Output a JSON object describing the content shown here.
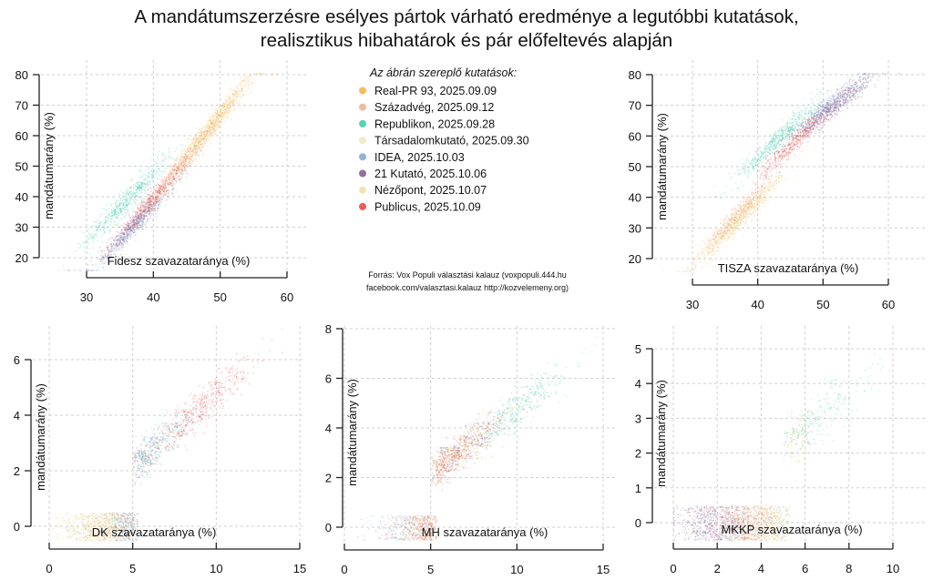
{
  "title": {
    "line1": "A mandátumszerzésre esélyes pártok várható eredménye a legutóbbi kutatások,",
    "line2": "realisztikus hibahatárok és pár előfeltevés alapján"
  },
  "legend": {
    "title": "Az ábrán szereplő kutatások:",
    "items": [
      {
        "label": "Real-PR 93, 2025.09.09",
        "color": "#F5B041"
      },
      {
        "label": "Századvég, 2025.09.12",
        "color": "#EDB08E"
      },
      {
        "label": "Republikon, 2025.09.28",
        "color": "#3CC9A6"
      },
      {
        "label": "Társadalomkutató, 2025.09.30",
        "color": "#EFE6BC"
      },
      {
        "label": "IDEA, 2025.10.03",
        "color": "#7FA6D4"
      },
      {
        "label": "21 Kutató, 2025.10.06",
        "color": "#7B5B8E"
      },
      {
        "label": "Nézőpont, 2025.10.07",
        "color": "#EEDFA2"
      },
      {
        "label": "Publicus, 2025.10.09",
        "color": "#E8403E"
      }
    ]
  },
  "source": {
    "line1": "Forrás: Vox Populi választási kalauz (voxpopuli.444.hu",
    "line2": "facebook.com/valasztasi.kalauz http://kozvelemeny.org)"
  },
  "chart_data": [
    {
      "id": "fidesz",
      "type": "scatter",
      "title": "",
      "xlabel": "Fidesz szavazataránya (%)",
      "ylabel": "mandátumarány (%)",
      "xlim": [
        30,
        60
      ],
      "ylim": [
        20,
        80
      ],
      "xticks": [
        30,
        40,
        50,
        60
      ],
      "yticks": [
        20,
        30,
        40,
        50,
        60,
        70,
        80
      ],
      "grid": true,
      "series": [
        {
          "name": "Real-PR 93, 2025.09.09",
          "x_mean": 48.5,
          "x_sd": 3.3,
          "slope": 2.6,
          "intercept": -63,
          "y_sd": 3.2,
          "weight": 1.6
        },
        {
          "name": "Századvég, 2025.09.12",
          "x_mean": 45,
          "x_sd": 3.0,
          "slope": 2.6,
          "intercept": -64,
          "y_sd": 3.0,
          "weight": 0.6
        },
        {
          "name": "Republikon, 2025.09.28",
          "x_mean": 36,
          "x_sd": 3.2,
          "slope": 2.2,
          "intercept": -40,
          "y_sd": 3.5,
          "weight": 1.2
        },
        {
          "name": "Társadalomkutató, 2025.09.30",
          "x_mean": 44,
          "x_sd": 3.2,
          "slope": 2.6,
          "intercept": -66,
          "y_sd": 3.0,
          "weight": 0.4
        },
        {
          "name": "IDEA, 2025.10.03",
          "x_mean": 37,
          "x_sd": 3.0,
          "slope": 2.3,
          "intercept": -55,
          "y_sd": 2.8,
          "weight": 0.7
        },
        {
          "name": "21 Kutató, 2025.10.06",
          "x_mean": 37,
          "x_sd": 3.2,
          "slope": 2.3,
          "intercept": -54,
          "y_sd": 2.8,
          "weight": 1.0
        },
        {
          "name": "Nézőpont, 2025.10.07",
          "x_mean": 47,
          "x_sd": 3.2,
          "slope": 2.6,
          "intercept": -63,
          "y_sd": 3.0,
          "weight": 0.4
        },
        {
          "name": "Publicus, 2025.10.09",
          "x_mean": 40,
          "x_sd": 2.8,
          "slope": 2.4,
          "intercept": -56,
          "y_sd": 2.8,
          "weight": 0.8
        }
      ]
    },
    {
      "id": "tisza",
      "type": "scatter",
      "title": "",
      "xlabel": "TISZA szavazataránya (%)",
      "ylabel": "mandátumarány (%)",
      "xlim": [
        30,
        60
      ],
      "ylim": [
        20,
        80
      ],
      "xticks": [
        30,
        40,
        50,
        60
      ],
      "yticks": [
        20,
        30,
        40,
        50,
        60,
        70,
        80
      ],
      "grid": true,
      "series": [
        {
          "name": "Real-PR 93, 2025.09.09",
          "x_mean": 37,
          "x_sd": 3.2,
          "slope": 2.2,
          "intercept": -48,
          "y_sd": 3.0,
          "weight": 1.0
        },
        {
          "name": "Századvég, 2025.09.12",
          "x_mean": 37,
          "x_sd": 3.0,
          "slope": 2.2,
          "intercept": -46,
          "y_sd": 3.0,
          "weight": 0.8
        },
        {
          "name": "Republikon, 2025.09.28",
          "x_mean": 43,
          "x_sd": 3.0,
          "slope": 2.0,
          "intercept": -27,
          "y_sd": 3.3,
          "weight": 1.1
        },
        {
          "name": "Társadalomkutató, 2025.09.30",
          "x_mean": 36,
          "x_sd": 3.0,
          "slope": 2.2,
          "intercept": -48,
          "y_sd": 3.0,
          "weight": 0.5
        },
        {
          "name": "IDEA, 2025.10.03",
          "x_mean": 50,
          "x_sd": 3.0,
          "slope": 1.8,
          "intercept": -21,
          "y_sd": 2.8,
          "weight": 0.8
        },
        {
          "name": "21 Kutató, 2025.10.06",
          "x_mean": 52,
          "x_sd": 3.0,
          "slope": 1.7,
          "intercept": -18,
          "y_sd": 3.0,
          "weight": 1.2
        },
        {
          "name": "Nézőpont, 2025.10.07",
          "x_mean": 38,
          "x_sd": 3.0,
          "slope": 2.2,
          "intercept": -50,
          "y_sd": 3.0,
          "weight": 0.5
        },
        {
          "name": "Publicus, 2025.10.09",
          "x_mean": 45.5,
          "x_sd": 2.6,
          "slope": 2.0,
          "intercept": -33,
          "y_sd": 2.8,
          "weight": 0.8
        }
      ]
    },
    {
      "id": "dk",
      "type": "scatter",
      "title": "",
      "xlabel": "DK szavazataránya (%)",
      "ylabel": "mandátumarány (%)",
      "xlim": [
        0,
        15
      ],
      "ylim": [
        0,
        6
      ],
      "xticks": [
        0,
        5,
        10,
        15
      ],
      "yticks": [
        0,
        2,
        4,
        6
      ],
      "grid": true,
      "threshold": 5,
      "series": [
        {
          "name": "Real-PR 93, 2025.09.09",
          "x_mean": 3.2,
          "x_sd": 1.2,
          "weight": 0.6
        },
        {
          "name": "Századvég, 2025.09.12",
          "x_mean": 4.6,
          "x_sd": 1.1,
          "weight": 0.6
        },
        {
          "name": "Republikon, 2025.09.28",
          "x_mean": 5.8,
          "x_sd": 1.3,
          "weight": 0.7
        },
        {
          "name": "Társadalomkutató, 2025.09.30",
          "x_mean": 2.8,
          "x_sd": 1.2,
          "weight": 0.8
        },
        {
          "name": "IDEA, 2025.10.03",
          "x_mean": 5.5,
          "x_sd": 1.3,
          "weight": 0.7
        },
        {
          "name": "21 Kutató, 2025.10.06",
          "x_mean": 4.8,
          "x_sd": 1.3,
          "weight": 0.5
        },
        {
          "name": "Nézőpont, 2025.10.07",
          "x_mean": 2.5,
          "x_sd": 1.1,
          "weight": 0.8
        },
        {
          "name": "Publicus, 2025.10.09",
          "x_mean": 9.0,
          "x_sd": 1.5,
          "weight": 1.1
        }
      ]
    },
    {
      "id": "mh",
      "type": "scatter",
      "title": "",
      "xlabel": "MH szavazataránya (%)",
      "ylabel": "mandátumarány (%)",
      "xlim": [
        0,
        15
      ],
      "ylim": [
        0,
        8
      ],
      "xticks": [
        0,
        5,
        10,
        15
      ],
      "yticks": [
        0,
        2,
        4,
        6,
        8
      ],
      "grid": true,
      "threshold": 5,
      "series": [
        {
          "name": "Real-PR 93, 2025.09.09",
          "x_mean": 6.2,
          "x_sd": 1.4,
          "weight": 0.9
        },
        {
          "name": "Századvég, 2025.09.12",
          "x_mean": 6.5,
          "x_sd": 1.4,
          "weight": 0.8
        },
        {
          "name": "Republikon, 2025.09.28",
          "x_mean": 10.0,
          "x_sd": 1.5,
          "weight": 0.9
        },
        {
          "name": "Társadalomkutató, 2025.09.30",
          "x_mean": 5.0,
          "x_sd": 1.3,
          "weight": 0.4
        },
        {
          "name": "IDEA, 2025.10.03",
          "x_mean": 3.8,
          "x_sd": 1.2,
          "weight": 0.6
        },
        {
          "name": "21 Kutató, 2025.10.06",
          "x_mean": 6.8,
          "x_sd": 1.4,
          "weight": 0.7
        },
        {
          "name": "Nézőpont, 2025.10.07",
          "x_mean": 4.6,
          "x_sd": 1.2,
          "weight": 0.4
        },
        {
          "name": "Publicus, 2025.10.09",
          "x_mean": 5.5,
          "x_sd": 1.3,
          "weight": 0.7
        }
      ]
    },
    {
      "id": "mkkp",
      "type": "scatter",
      "title": "",
      "xlabel": "MKKP szavazataránya (%)",
      "ylabel": "mandátumarány (%)",
      "xlim": [
        0,
        10
      ],
      "ylim": [
        0,
        5
      ],
      "xticks": [
        0,
        2,
        4,
        6,
        8,
        10
      ],
      "yticks": [
        0,
        1,
        2,
        3,
        4,
        5
      ],
      "grid": true,
      "threshold": 5,
      "series": [
        {
          "name": "Real-PR 93, 2025.09.09",
          "x_mean": 4.0,
          "x_sd": 1.0,
          "weight": 0.6
        },
        {
          "name": "Századvég, 2025.09.12",
          "x_mean": 3.6,
          "x_sd": 1.0,
          "weight": 0.7
        },
        {
          "name": "Republikon, 2025.09.28",
          "x_mean": 6.0,
          "x_sd": 1.4,
          "weight": 0.8
        },
        {
          "name": "Társadalomkutató, 2025.09.30",
          "x_mean": 4.8,
          "x_sd": 1.1,
          "weight": 0.6
        },
        {
          "name": "IDEA, 2025.10.03",
          "x_mean": 2.4,
          "x_sd": 0.9,
          "weight": 0.6
        },
        {
          "name": "21 Kutató, 2025.10.06",
          "x_mean": 1.6,
          "x_sd": 0.8,
          "weight": 0.9
        },
        {
          "name": "Nézőpont, 2025.10.07",
          "x_mean": 4.6,
          "x_sd": 1.1,
          "weight": 0.6
        },
        {
          "name": "Publicus, 2025.10.09",
          "x_mean": 3.0,
          "x_sd": 1.0,
          "weight": 0.6
        }
      ]
    }
  ]
}
